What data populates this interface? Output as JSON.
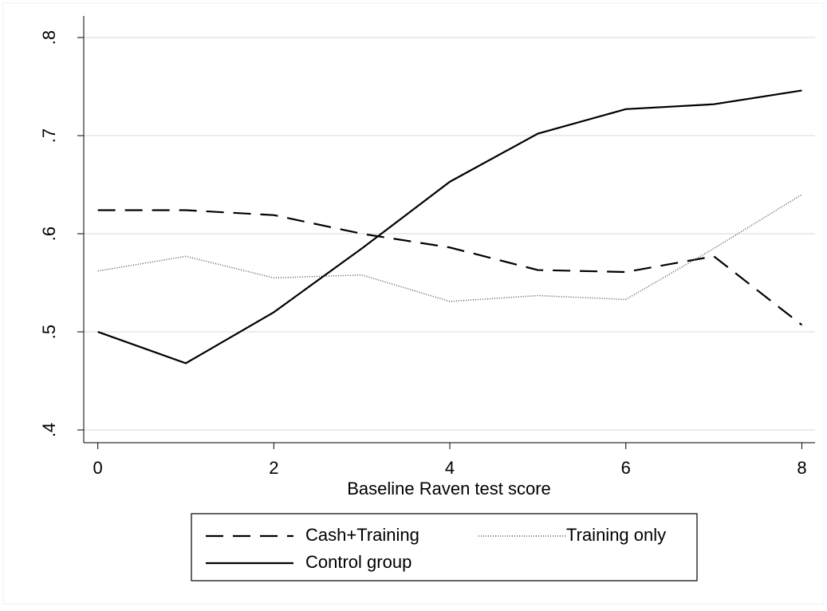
{
  "chart_data": {
    "type": "line",
    "xlabel": "Baseline Raven test score",
    "x": [
      0,
      1,
      2,
      3,
      4,
      5,
      6,
      7,
      8
    ],
    "series": [
      {
        "name": "Cash+Training",
        "color": "#000000",
        "dash": "22,12",
        "values": [
          0.624,
          0.624,
          0.619,
          0.6,
          0.586,
          0.563,
          0.561,
          0.577,
          0.507
        ]
      },
      {
        "name": "Training only",
        "color": "#555555",
        "dash": "1,2",
        "values": [
          0.562,
          0.577,
          0.555,
          0.558,
          0.531,
          0.537,
          0.533,
          0.585,
          0.64
        ]
      },
      {
        "name": "Control group",
        "color": "#000000",
        "dash": "",
        "values": [
          0.5,
          0.468,
          0.52,
          0.585,
          0.653,
          0.702,
          0.727,
          0.732,
          0.746
        ]
      }
    ],
    "xlim": [
      -0.16,
      8.15
    ],
    "ylim": [
      0.387,
      0.822
    ],
    "xticks": [
      0,
      2,
      4,
      6,
      8
    ],
    "yticks": [
      {
        "value": 0.4,
        "label": ".4"
      },
      {
        "value": 0.5,
        "label": ".5"
      },
      {
        "value": 0.6,
        "label": ".6"
      },
      {
        "value": 0.7,
        "label": ".7"
      },
      {
        "value": 0.8,
        "label": ".8"
      }
    ],
    "grid": true,
    "legend": "bottom"
  }
}
